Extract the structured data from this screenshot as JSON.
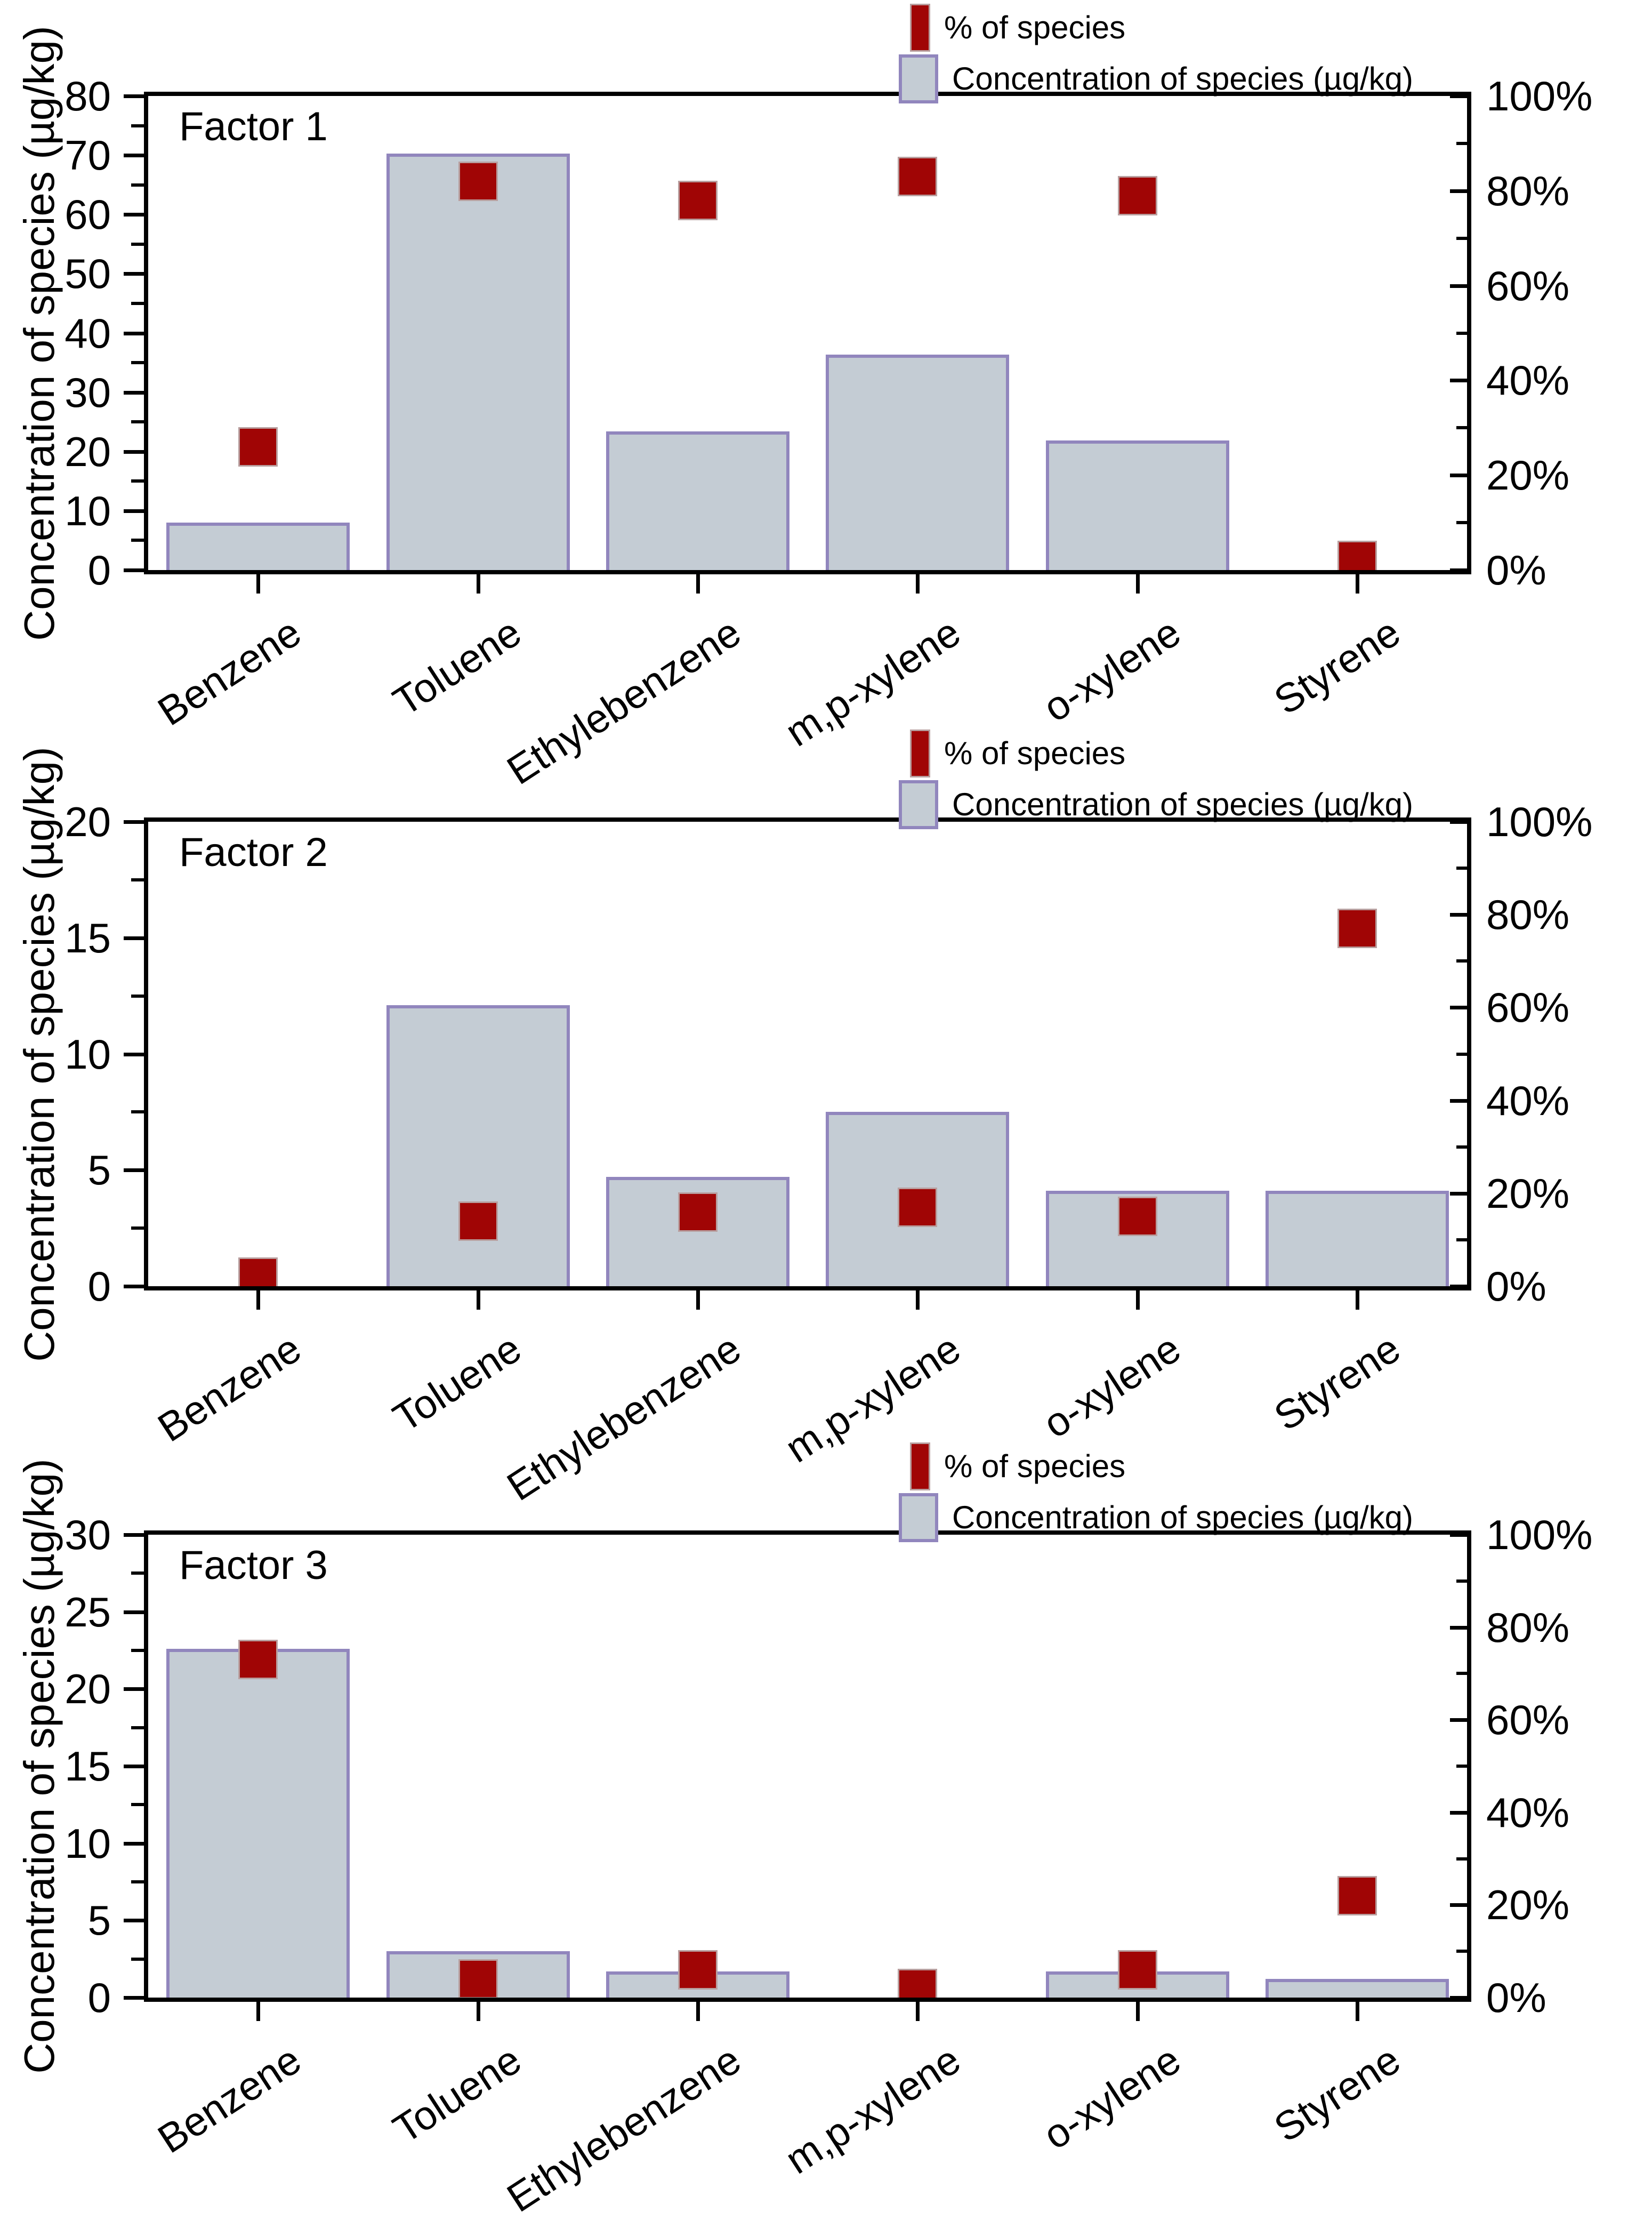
{
  "colors": {
    "bar_fill": "#c4ccd4",
    "bar_edge": "#9186bd",
    "marker_fill": "#a00505",
    "marker_edge": "#b89f9f",
    "axis": "#000000",
    "text": "#000000",
    "background": "#ffffff"
  },
  "legend": {
    "marker_label": "% of species",
    "bar_label": "Concentration of species (µg/kg)"
  },
  "categories": [
    "Benzene",
    "Toluene",
    "Ethylebenzene",
    "m,p-xylene",
    "o-xylene",
    "Styrene"
  ],
  "chart_data": [
    {
      "type": "bar",
      "title": "Factor 1",
      "categories": [
        "Benzene",
        "Toluene",
        "Ethylebenzene",
        "m,p-xylene",
        "o-xylene",
        "Styrene"
      ],
      "series": [
        {
          "name": "Concentration of species (µg/kg)",
          "axis": "left",
          "type": "bar",
          "values": [
            8.0,
            70.3,
            23.4,
            36.4,
            21.9,
            0
          ]
        },
        {
          "name": "% of species",
          "axis": "right",
          "type": "scatter-square",
          "values": [
            26,
            82,
            78,
            83,
            79,
            2
          ]
        }
      ],
      "left_axis": {
        "label": "Concentration of species  (µg/kg)",
        "min": 0,
        "max": 80,
        "major": 10,
        "minor": 5,
        "ticks": [
          "0",
          "10",
          "20",
          "30",
          "40",
          "50",
          "60",
          "70",
          "80"
        ]
      },
      "right_axis": {
        "label": "% of species",
        "min": 0,
        "max": 100,
        "major": 20,
        "minor": 10,
        "ticks": [
          "0%",
          "20%",
          "40%",
          "60%",
          "80%",
          "100%"
        ]
      },
      "grid": false,
      "legend_position": "top-right"
    },
    {
      "type": "bar",
      "title": "Factor 2",
      "categories": [
        "Benzene",
        "Toluene",
        "Ethylebenzene",
        "m,p-xylene",
        "o-xylene",
        "Styrene"
      ],
      "series": [
        {
          "name": "Concentration of species (µg/kg)",
          "axis": "left",
          "type": "bar",
          "values": [
            0,
            12.1,
            4.7,
            7.5,
            4.1,
            4.1
          ]
        },
        {
          "name": "% of species",
          "axis": "right",
          "type": "scatter-square",
          "values": [
            2,
            14,
            16,
            17,
            15,
            77
          ]
        }
      ],
      "left_axis": {
        "label": "Concentration of species  (µg/kg)",
        "min": 0,
        "max": 20,
        "major": 5,
        "minor": 2.5,
        "ticks": [
          "0",
          "5",
          "10",
          "15",
          "20"
        ]
      },
      "right_axis": {
        "label": "% of species",
        "min": 0,
        "max": 100,
        "major": 20,
        "minor": 10,
        "ticks": [
          "0%",
          "20%",
          "40%",
          "60%",
          "80%",
          "100%"
        ]
      },
      "grid": false,
      "legend_position": "top-right"
    },
    {
      "type": "bar",
      "title": "Factor 3",
      "categories": [
        "Benzene",
        "Toluene",
        "Ethylebenzene",
        "m,p-xylene",
        "o-xylene",
        "Styrene"
      ],
      "series": [
        {
          "name": "Concentration of species (µg/kg)",
          "axis": "left",
          "type": "bar",
          "values": [
            22.6,
            3.0,
            1.7,
            0,
            1.7,
            1.2
          ]
        },
        {
          "name": "% of species",
          "axis": "right",
          "type": "scatter-square",
          "values": [
            73,
            4,
            6,
            2,
            6,
            22
          ]
        }
      ],
      "left_axis": {
        "label": "Concentration of species  (µg/kg)",
        "min": 0,
        "max": 30,
        "major": 5,
        "minor": 2.5,
        "ticks": [
          "0",
          "5",
          "10",
          "15",
          "20",
          "25",
          "30"
        ]
      },
      "right_axis": {
        "label": "% of species",
        "min": 0,
        "max": 100,
        "major": 20,
        "minor": 10,
        "ticks": [
          "0%",
          "20%",
          "40%",
          "60%",
          "80%",
          "100%"
        ]
      },
      "grid": false,
      "legend_position": "top-right"
    }
  ]
}
